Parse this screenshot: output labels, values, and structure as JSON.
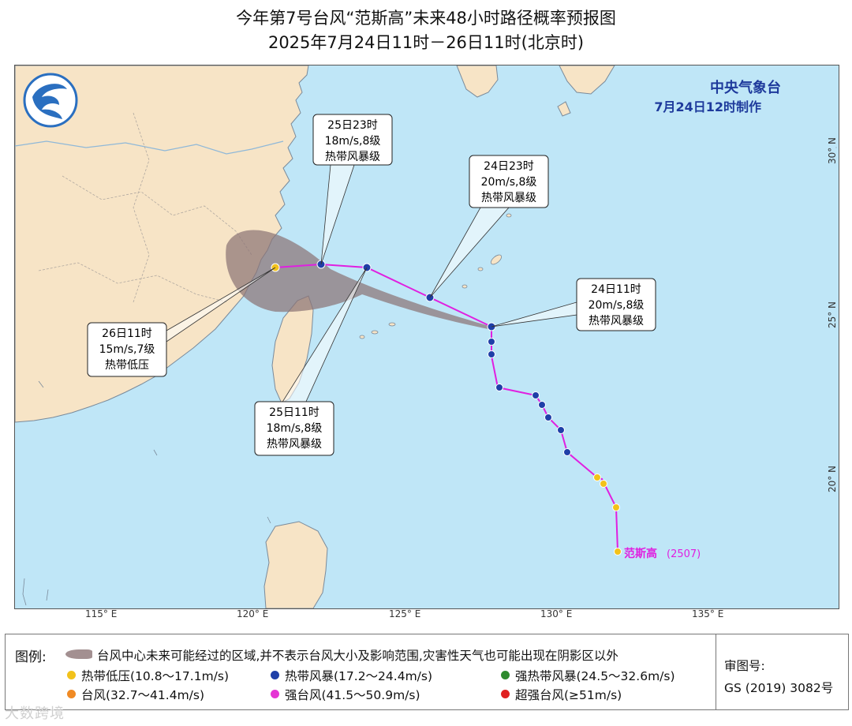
{
  "title": {
    "line1": "今年第7号台风“范斯高”未来48小时路径概率预报图",
    "line2": "2025年7月24日11时－26日11时(北京时)"
  },
  "agency": {
    "name": "中央气象台",
    "made": "7月24日12时制作"
  },
  "axes": {
    "lon_ticks": [
      "115° E",
      "120° E",
      "125° E",
      "130° E",
      "135° E"
    ],
    "lat_ticks": [
      "30° N",
      "25° N",
      "20° N"
    ]
  },
  "storm": {
    "label": "范斯高",
    "code": "(2507)"
  },
  "callouts": [
    {
      "time": "25日23时",
      "wind": "18m/s,8级",
      "level": "热带风暴级"
    },
    {
      "time": "24日23时",
      "wind": "20m/s,8级",
      "level": "热带风暴级"
    },
    {
      "time": "24日11时",
      "wind": "20m/s,8级",
      "level": "热带风暴级"
    },
    {
      "time": "26日11时",
      "wind": "15m/s,7级",
      "level": "热带低压"
    },
    {
      "time": "25日11时",
      "wind": "18m/s,8级",
      "level": "热带风暴级"
    }
  ],
  "legend": {
    "title": "图例:",
    "cone": "台风中心未来可能经过的区域,并不表示台风大小及影响范围,灾害性天气也可能出现在阴影区以外",
    "items": [
      {
        "label": "热带低压(10.8～17.1m/s)",
        "color": "#f2c21b"
      },
      {
        "label": "热带风暴(17.2～24.4m/s)",
        "color": "#1f3fa8"
      },
      {
        "label": "强热带风暴(24.5～32.6m/s)",
        "color": "#2e8b2e"
      },
      {
        "label": "台风(32.7～41.4m/s)",
        "color": "#f08a24"
      },
      {
        "label": "强台风(41.5～50.9m/s)",
        "color": "#e534d4"
      },
      {
        "label": "超强台风(≥51m/s)",
        "color": "#e02020"
      }
    ],
    "review_label": "审图号:",
    "review_no": "GS (2019) 3082号"
  },
  "watermark": "大数跨境",
  "colors": {
    "sea": "#bfe6f7",
    "land": "#f7e4c6",
    "cone": "#8c7476",
    "track": "#e020e0"
  }
}
